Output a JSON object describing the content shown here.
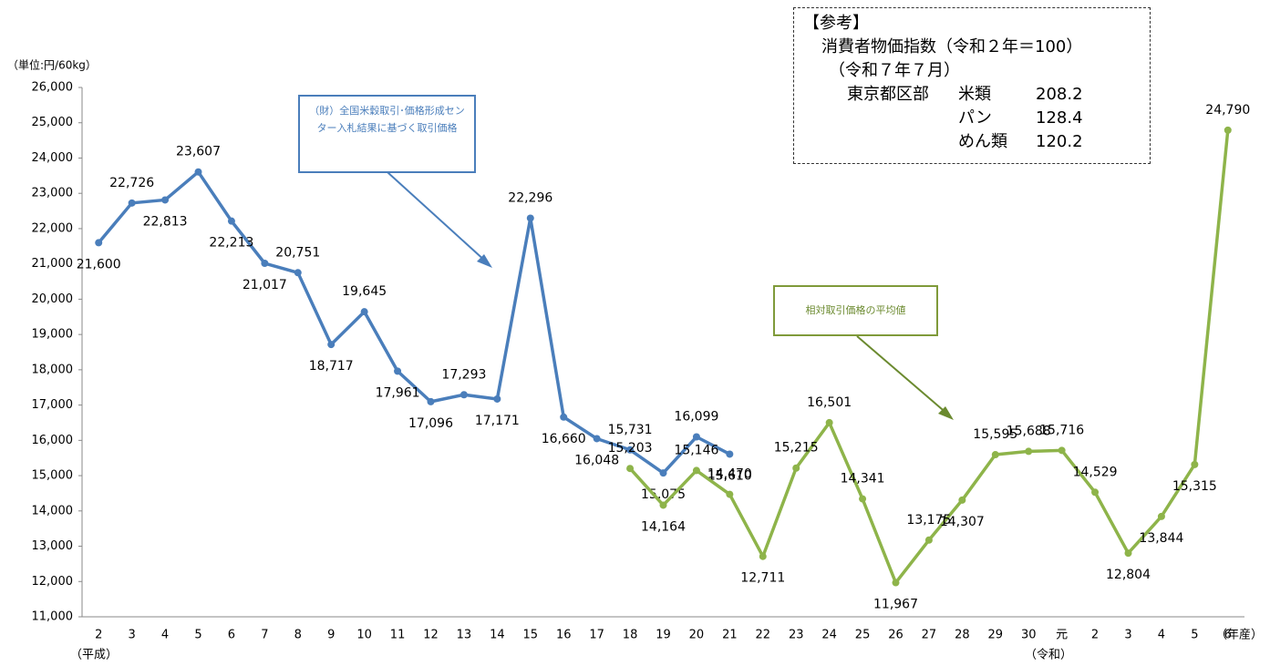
{
  "chart_data": {
    "type": "line",
    "y_unit_label": "（単位:円/60kg）",
    "x_unit_label": "（年産）",
    "era_labels": [
      "（平成）",
      "（令和）"
    ],
    "categories": [
      "2",
      "3",
      "4",
      "5",
      "6",
      "7",
      "8",
      "9",
      "10",
      "11",
      "12",
      "13",
      "14",
      "15",
      "16",
      "17",
      "18",
      "19",
      "20",
      "21",
      "22",
      "23",
      "24",
      "25",
      "26",
      "27",
      "28",
      "29",
      "30",
      "元",
      "2",
      "3",
      "4",
      "5",
      "6"
    ],
    "series": [
      {
        "name": "（財）全国米穀取引･価格形成センター入札結果に基づく取引価格",
        "color": "#4a7ebb",
        "values": [
          21600,
          22726,
          22813,
          23607,
          22213,
          21017,
          20751,
          18717,
          19645,
          17961,
          17096,
          17293,
          17171,
          22296,
          16660,
          16048,
          15731,
          15075,
          16099,
          15610,
          null,
          null,
          null,
          null,
          null,
          null,
          null,
          null,
          null,
          null,
          null,
          null,
          null,
          null,
          null
        ],
        "value_labels": [
          "21,600",
          "22,726",
          "22,813",
          "23,607",
          "22,213",
          "21,017",
          "20,751",
          "18,717",
          "19,645",
          "17,961",
          "17,096",
          "17,293",
          "17,171",
          "22,296",
          "16,660",
          "16,048",
          "15,731",
          "15,075",
          "16,099",
          "15,610",
          null,
          null,
          null,
          null,
          null,
          null,
          null,
          null,
          null,
          null,
          null,
          null,
          null,
          null,
          null
        ]
      },
      {
        "name": "相対取引価格の平均値",
        "color": "#8eb44a",
        "values": [
          null,
          null,
          null,
          null,
          null,
          null,
          null,
          null,
          null,
          null,
          null,
          null,
          null,
          null,
          null,
          null,
          15203,
          14164,
          15146,
          14470,
          12711,
          15215,
          16501,
          14341,
          11967,
          13175,
          14307,
          15595,
          15688,
          15716,
          14529,
          12804,
          13844,
          15315,
          24790
        ],
        "value_labels": [
          null,
          null,
          null,
          null,
          null,
          null,
          null,
          null,
          null,
          null,
          null,
          null,
          null,
          null,
          null,
          null,
          "15,203",
          "14,164",
          "15,146",
          "14,470",
          "12,711",
          "15,215",
          "16,501",
          "14,341",
          "11,967",
          "13,175",
          "14,307",
          "15,595",
          "15,688",
          "15,716",
          "14,529",
          "12,804",
          "13,844",
          "15,315",
          "24,790"
        ]
      }
    ],
    "ylim": [
      11000,
      26000
    ],
    "yticks": [
      {
        "value": 11000,
        "label": "11,000"
      },
      {
        "value": 12000,
        "label": "12,000"
      },
      {
        "value": 13000,
        "label": "13,000"
      },
      {
        "value": 14000,
        "label": "14,000"
      },
      {
        "value": 15000,
        "label": "15,000"
      },
      {
        "value": 16000,
        "label": "16,000"
      },
      {
        "value": 17000,
        "label": "17,000"
      },
      {
        "value": 18000,
        "label": "18,000"
      },
      {
        "value": 19000,
        "label": "19,000"
      },
      {
        "value": 20000,
        "label": "20,000"
      },
      {
        "value": 21000,
        "label": "21,000"
      },
      {
        "value": 22000,
        "label": "22,000"
      },
      {
        "value": 23000,
        "label": "23,000"
      },
      {
        "value": 24000,
        "label": "24,000"
      },
      {
        "value": 25000,
        "label": "25,000"
      },
      {
        "value": 26000,
        "label": "26,000"
      }
    ],
    "grid": false,
    "reference": {
      "title": "【参考】",
      "subtitle": "消費者物価指数（令和２年＝100）",
      "period": "（令和７年７月）",
      "region": "東京都区部",
      "items": [
        {
          "name": "米類",
          "value": 208.2
        },
        {
          "name": "パン",
          "value": 128.4
        },
        {
          "name": "めん類",
          "value": 120.2
        }
      ]
    }
  }
}
